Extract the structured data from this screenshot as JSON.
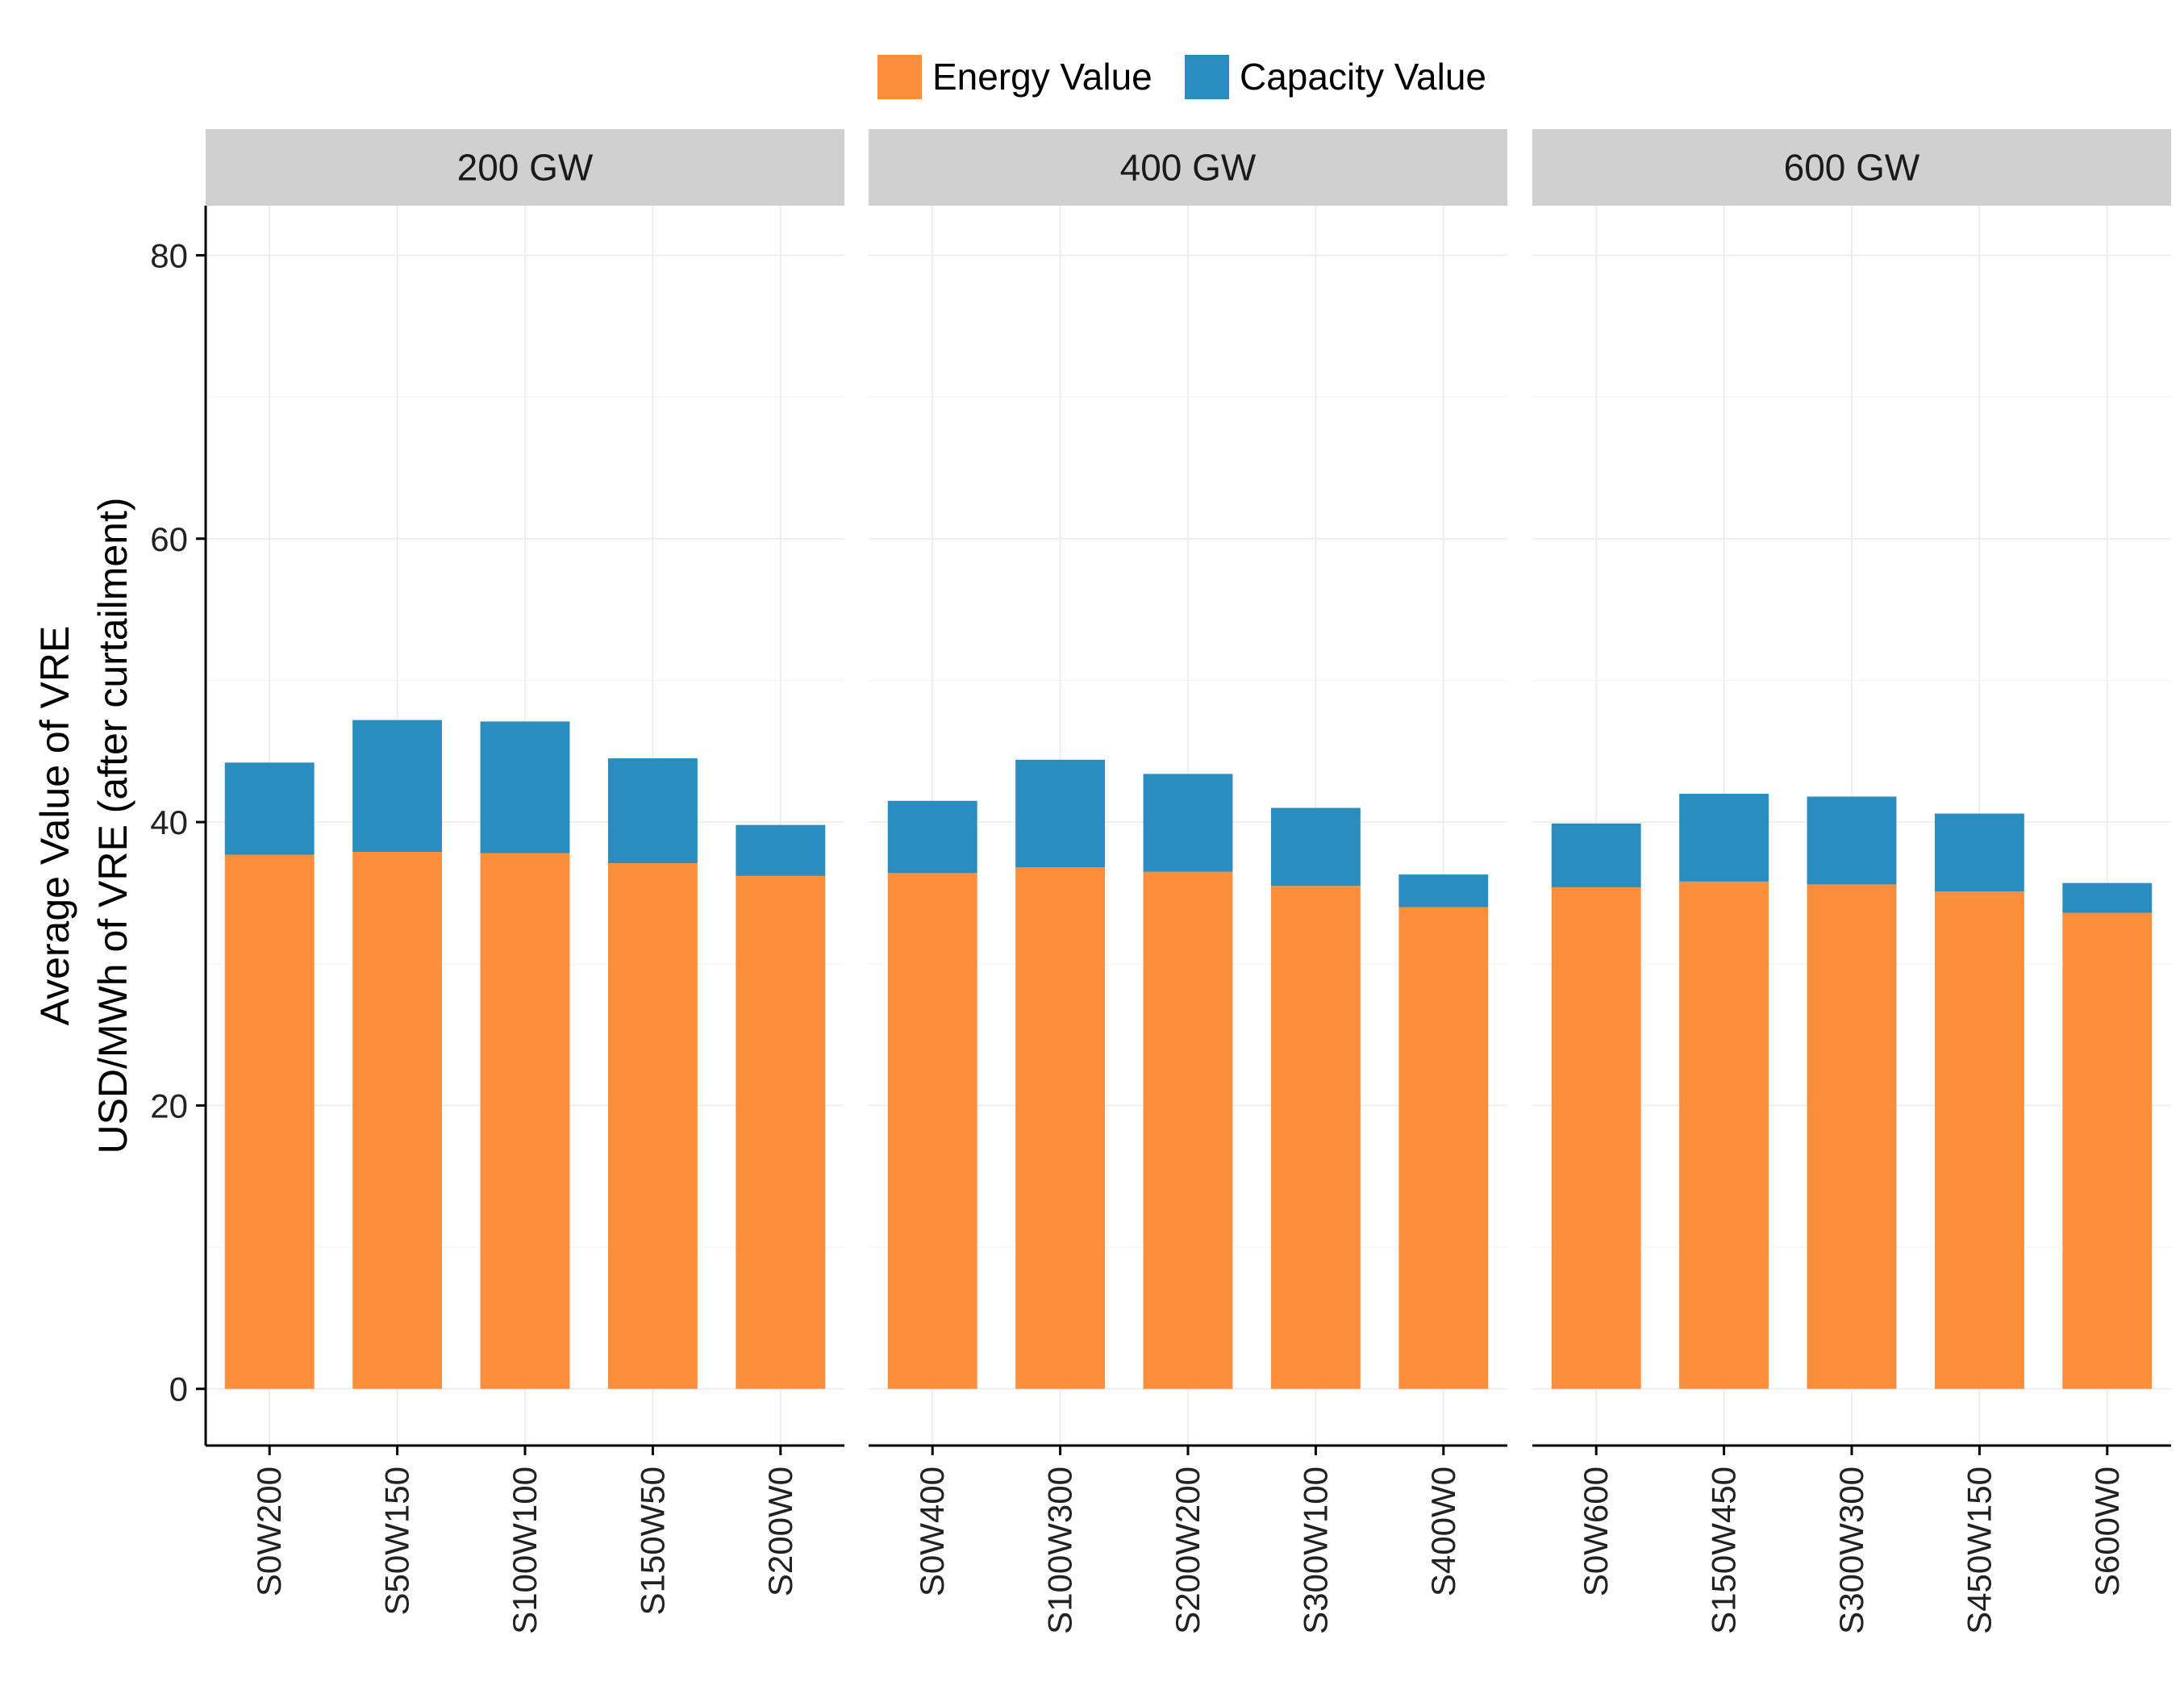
{
  "chart_data": {
    "type": "bar",
    "stacked": true,
    "ylabel": [
      "Average Value of VRE",
      "USD/MWh of VRE (after curtailment)"
    ],
    "ylim": [
      -4,
      83.5
    ],
    "y_ticks": [
      0,
      20,
      40,
      60,
      80
    ],
    "legend": {
      "position": "top",
      "entries": [
        {
          "name": "Energy Value",
          "color": "#FC8E3C"
        },
        {
          "name": "Capacity Value",
          "color": "#2B8DBF"
        }
      ]
    },
    "grid": true,
    "panels": [
      {
        "label": "200 GW",
        "categories": [
          "S0W200",
          "S50W150",
          "S100W100",
          "S150W50",
          "S200W0"
        ],
        "series": [
          {
            "name": "Energy Value",
            "values": [
              37.7,
              37.9,
              37.8,
              37.1,
              36.2
            ]
          },
          {
            "name": "Capacity Value",
            "values": [
              6.5,
              9.3,
              9.3,
              7.4,
              3.6
            ]
          }
        ]
      },
      {
        "label": "400 GW",
        "categories": [
          "S0W400",
          "S100W300",
          "S200W200",
          "S300W100",
          "S400W0"
        ],
        "series": [
          {
            "name": "Energy Value",
            "values": [
              36.4,
              36.8,
              36.5,
              35.5,
              34.0
            ]
          },
          {
            "name": "Capacity Value",
            "values": [
              5.1,
              7.6,
              6.9,
              5.5,
              2.3
            ]
          }
        ]
      },
      {
        "label": "600 GW",
        "categories": [
          "S0W600",
          "S150W450",
          "S300W300",
          "S450W150",
          "S600W0"
        ],
        "series": [
          {
            "name": "Energy Value",
            "values": [
              35.4,
              35.8,
              35.6,
              35.1,
              33.6
            ]
          },
          {
            "name": "Capacity Value",
            "values": [
              4.5,
              6.2,
              6.2,
              5.5,
              2.1
            ]
          }
        ]
      }
    ]
  }
}
